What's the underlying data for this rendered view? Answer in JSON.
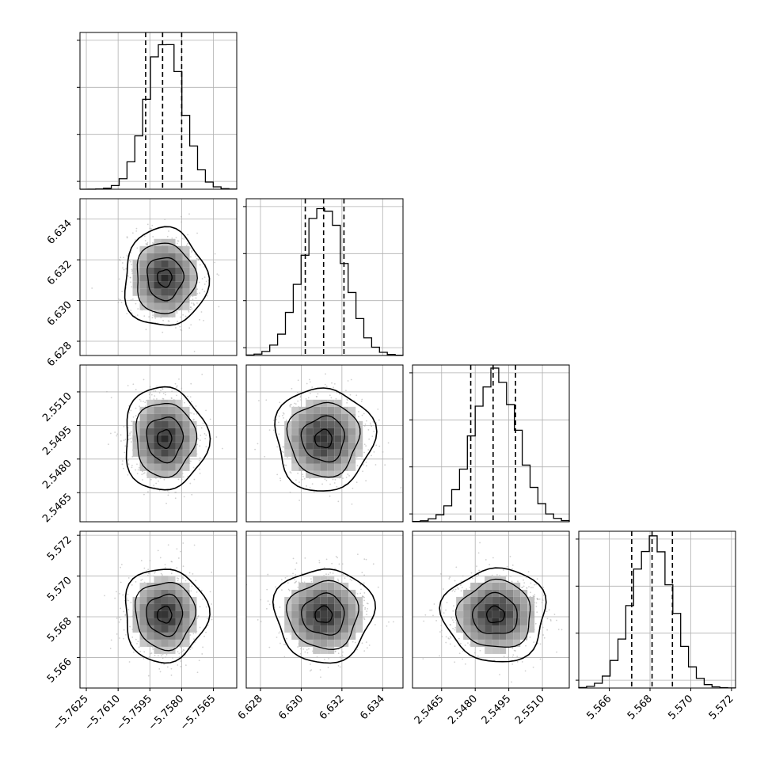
{
  "chart_data": {
    "type": "corner",
    "variables": [
      {
        "mean": -5.7588,
        "sd": 0.00085,
        "range": [
          -5.7628,
          -5.7554
        ],
        "quantiles": [
          -5.7597,
          -5.7589,
          -5.758
        ],
        "ticks": [
          -5.7625,
          -5.761,
          -5.7595,
          -5.758,
          -5.7565
        ],
        "tick_labels": [
          "−5.7625",
          "−5.7610",
          "−5.7595",
          "−5.7580",
          "−5.7565"
        ]
      },
      {
        "mean": 6.6311,
        "sd": 0.00105,
        "range": [
          6.6273,
          6.635
        ],
        "quantiles": [
          6.6302,
          6.6311,
          6.6321
        ],
        "ticks": [
          6.628,
          6.63,
          6.632,
          6.634
        ],
        "tick_labels": [
          "6.628",
          "6.630",
          "6.632",
          "6.634"
        ]
      },
      {
        "mean": 2.5489,
        "sd": 0.001,
        "range": [
          2.5452,
          2.5522
        ],
        "quantiles": [
          2.5478,
          2.5488,
          2.5498
        ],
        "ticks": [
          2.5465,
          2.548,
          2.5495,
          2.551
        ],
        "tick_labels": [
          "2.5465",
          "2.5480",
          "2.5495",
          "2.5510"
        ]
      },
      {
        "mean": 5.5681,
        "sd": 0.001,
        "range": [
          5.5645,
          5.5722
        ],
        "quantiles": [
          5.5671,
          5.5681,
          5.5691
        ],
        "ticks": [
          5.566,
          5.568,
          5.57,
          5.572
        ],
        "tick_labels": [
          "5.566",
          "5.568",
          "5.570",
          "5.572"
        ]
      }
    ],
    "histogram_bins": 20,
    "contour_levels": 4,
    "grid": true,
    "colors": {
      "line": "#000000",
      "points": "#aaaaaa",
      "grid": "#b0b0b0"
    }
  }
}
